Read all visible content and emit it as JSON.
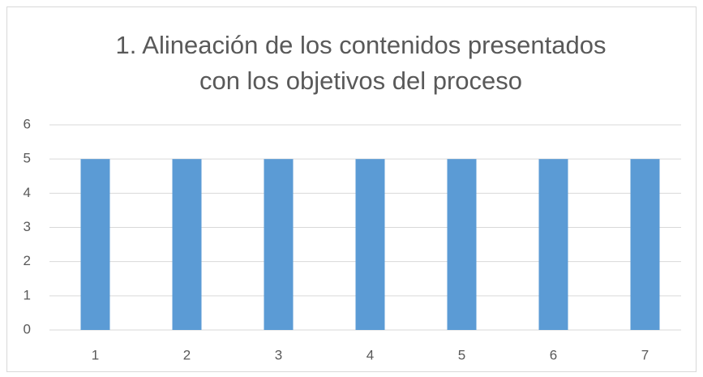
{
  "chart_data": {
    "type": "bar",
    "title": [
      "1. Alineación de los contenidos presentados",
      "con los objetivos del proceso"
    ],
    "categories": [
      "1",
      "2",
      "3",
      "4",
      "5",
      "6",
      "7"
    ],
    "values": [
      5,
      5,
      5,
      5,
      5,
      5,
      5
    ],
    "color": "#5b9bd5",
    "ylim": [
      0,
      6
    ],
    "yticks": [
      0,
      1,
      2,
      3,
      4,
      5,
      6
    ],
    "grid": true
  }
}
